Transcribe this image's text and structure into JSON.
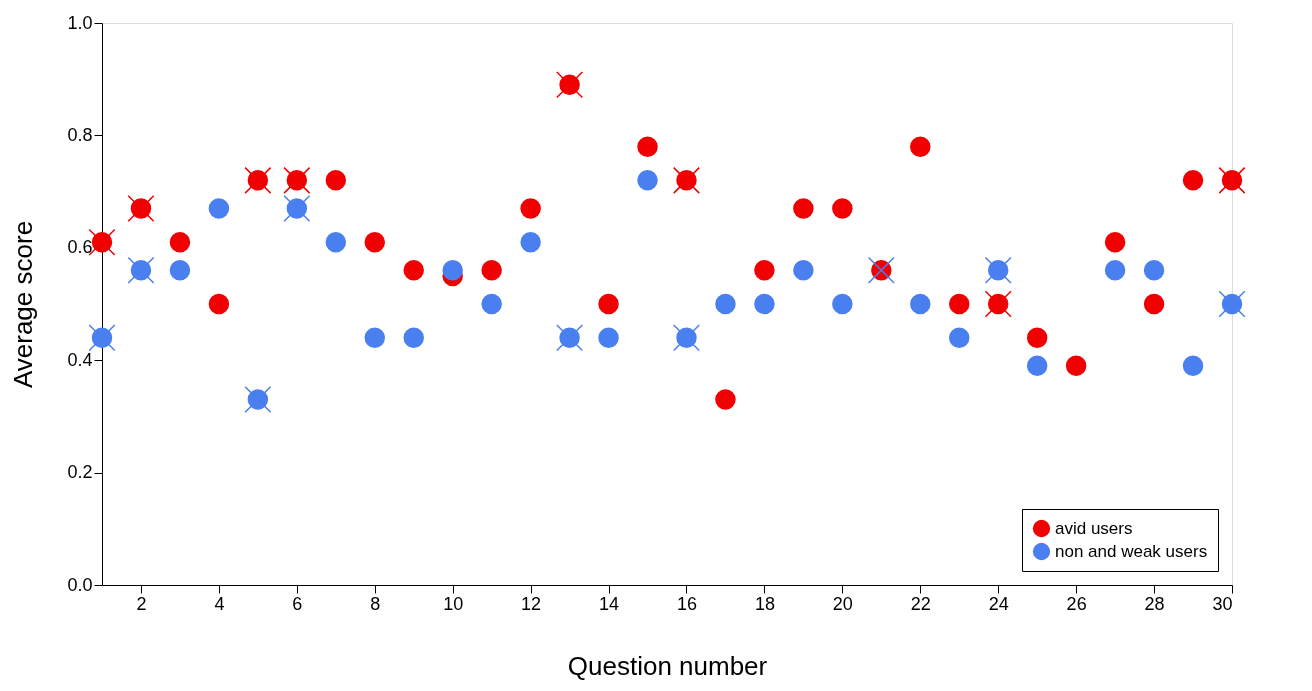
{
  "chart_data": {
    "type": "scatter",
    "xlabel": "Question number",
    "ylabel": "Average score",
    "x": [
      1,
      2,
      3,
      4,
      5,
      6,
      7,
      8,
      9,
      10,
      11,
      12,
      13,
      14,
      15,
      16,
      17,
      18,
      19,
      20,
      21,
      22,
      23,
      24,
      25,
      26,
      27,
      28,
      29,
      30
    ],
    "xlim": [
      1,
      30
    ],
    "xticks": [
      2,
      4,
      6,
      8,
      10,
      12,
      14,
      16,
      18,
      20,
      22,
      24,
      26,
      28,
      30
    ],
    "ylim": [
      0,
      1
    ],
    "yticks": [
      {
        "value": 0,
        "label": "0.0"
      },
      {
        "value": 0.2,
        "label": "0.2"
      },
      {
        "value": 0.4,
        "label": "0.4"
      },
      {
        "value": 0.6,
        "label": "0.6"
      },
      {
        "value": 0.8,
        "label": "0.8"
      },
      {
        "value": 1,
        "label": "1.0"
      }
    ],
    "grid": false,
    "legend": "bottom right",
    "series": [
      {
        "name": "avid users",
        "color": "#f00000",
        "marker": "circle",
        "values": [
          0.61,
          0.67,
          0.61,
          0.5,
          0.72,
          0.72,
          0.72,
          0.61,
          0.56,
          0.55,
          0.56,
          0.67,
          0.89,
          0.5,
          0.78,
          0.72,
          0.33,
          0.56,
          0.67,
          0.67,
          0.56,
          0.78,
          0.5,
          0.5,
          0.44,
          0.39,
          0.61,
          0.5,
          0.72,
          0.72
        ]
      },
      {
        "name": "non and weak users",
        "color": "#4a7ff0",
        "marker": "circle",
        "values": [
          0.44,
          0.56,
          0.56,
          0.67,
          0.33,
          0.67,
          0.61,
          0.44,
          0.44,
          0.56,
          0.5,
          0.61,
          0.44,
          0.44,
          0.72,
          0.44,
          0.5,
          0.5,
          0.56,
          0.5,
          null,
          0.5,
          0.44,
          0.56,
          0.39,
          null,
          0.56,
          0.56,
          0.39,
          0.5
        ]
      },
      {
        "color": "#f00000",
        "marker": "cross",
        "values": [
          0.61,
          0.67,
          null,
          null,
          0.72,
          0.72,
          null,
          null,
          null,
          null,
          null,
          null,
          0.89,
          null,
          null,
          0.72,
          null,
          null,
          null,
          null,
          null,
          null,
          null,
          0.5,
          null,
          null,
          null,
          null,
          null,
          0.72
        ]
      },
      {
        "color": "#4a7ff0",
        "marker": "cross",
        "values": [
          0.44,
          0.56,
          null,
          null,
          0.33,
          0.67,
          null,
          null,
          null,
          null,
          null,
          null,
          0.44,
          null,
          null,
          0.44,
          null,
          null,
          null,
          null,
          0.56,
          null,
          null,
          0.56,
          null,
          null,
          null,
          null,
          null,
          0.5
        ]
      }
    ]
  }
}
